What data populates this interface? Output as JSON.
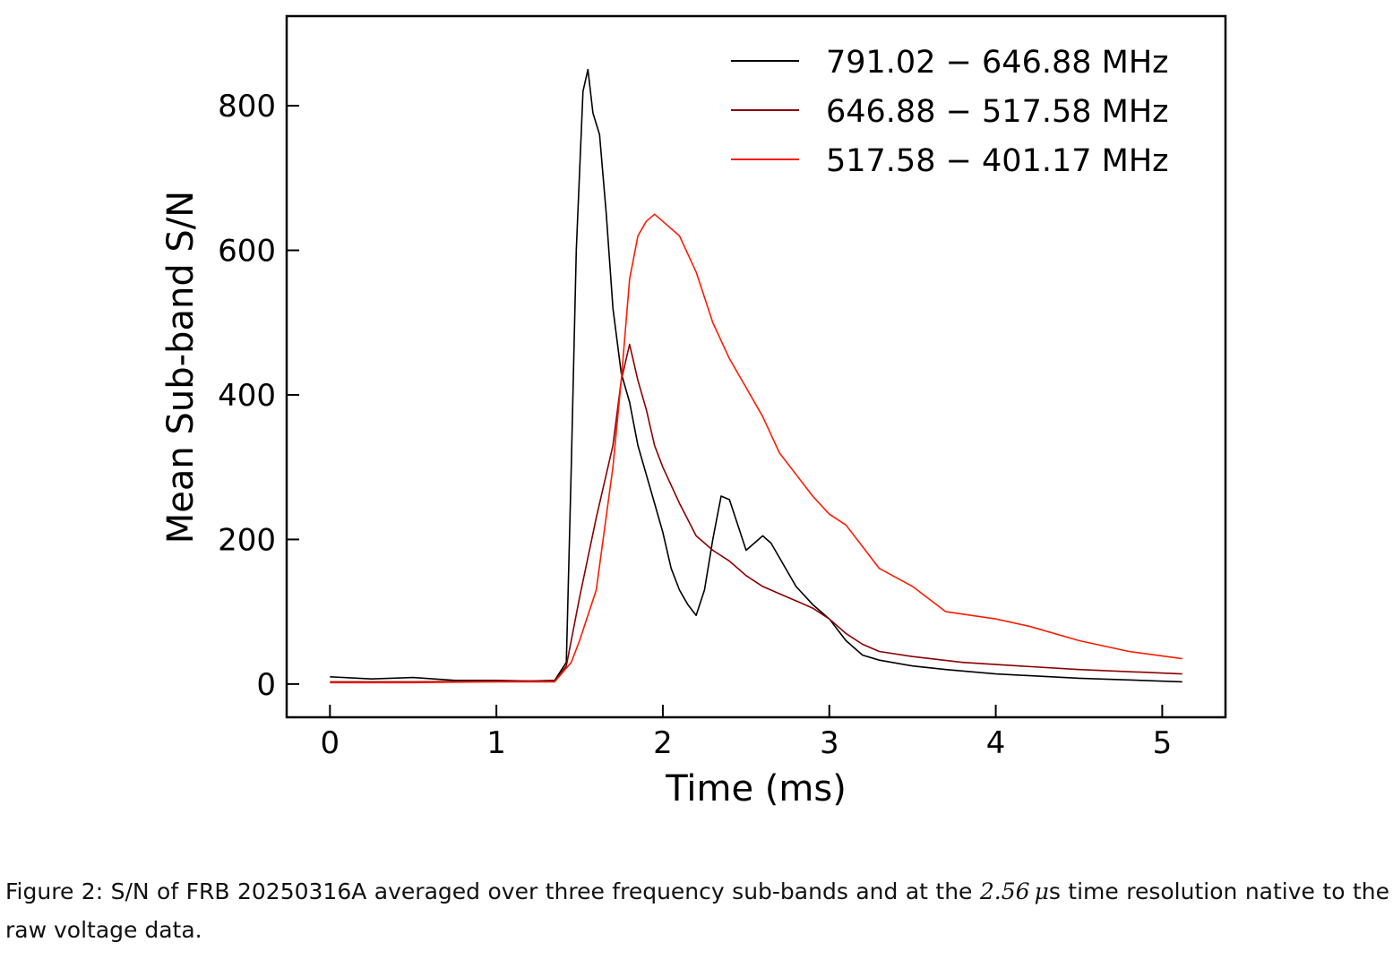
{
  "chart_data": {
    "type": "line",
    "title": "",
    "xlabel": "Time (ms)",
    "ylabel": "Mean Sub-band S/N",
    "xlim": [
      -0.26,
      5.38
    ],
    "ylim": [
      -46,
      924
    ],
    "xticks": [
      0,
      1,
      2,
      3,
      4,
      5
    ],
    "yticks": [
      0,
      200,
      400,
      600,
      800
    ],
    "grid": false,
    "legend_position": "top-right",
    "series": [
      {
        "name": "791.02 − 646.88 MHz",
        "color": "#000000",
        "x": [
          0,
          0.25,
          0.5,
          0.75,
          1.0,
          1.2,
          1.35,
          1.42,
          1.45,
          1.48,
          1.52,
          1.55,
          1.58,
          1.62,
          1.66,
          1.7,
          1.75,
          1.8,
          1.85,
          1.9,
          1.95,
          2.0,
          2.05,
          2.1,
          2.15,
          2.2,
          2.25,
          2.3,
          2.35,
          2.4,
          2.45,
          2.5,
          2.55,
          2.6,
          2.65,
          2.7,
          2.8,
          2.9,
          3.0,
          3.1,
          3.2,
          3.3,
          3.5,
          3.7,
          4.0,
          4.5,
          5.12
        ],
        "y": [
          10,
          7,
          9,
          5,
          5,
          4,
          5,
          30,
          300,
          600,
          820,
          850,
          790,
          760,
          650,
          520,
          430,
          390,
          330,
          290,
          250,
          210,
          160,
          130,
          110,
          95,
          130,
          200,
          260,
          255,
          220,
          185,
          195,
          205,
          195,
          175,
          135,
          110,
          90,
          60,
          40,
          33,
          25,
          20,
          14,
          8,
          3
        ]
      },
      {
        "name": "646.88 − 517.58 MHz",
        "color": "#8b0000",
        "x": [
          0,
          0.5,
          1.0,
          1.35,
          1.42,
          1.5,
          1.6,
          1.7,
          1.75,
          1.8,
          1.85,
          1.9,
          1.95,
          2.0,
          2.1,
          2.2,
          2.3,
          2.4,
          2.5,
          2.6,
          2.7,
          2.8,
          2.9,
          3.0,
          3.1,
          3.2,
          3.3,
          3.5,
          3.8,
          4.0,
          4.5,
          5.12
        ],
        "y": [
          3,
          3,
          4,
          4,
          25,
          120,
          230,
          330,
          420,
          470,
          420,
          380,
          330,
          300,
          250,
          205,
          185,
          170,
          150,
          135,
          125,
          115,
          105,
          90,
          70,
          55,
          45,
          38,
          30,
          27,
          20,
          14
        ]
      },
      {
        "name": "517.58 − 401.17 MHz",
        "color": "#ff1a00",
        "x": [
          0,
          0.5,
          1.0,
          1.35,
          1.45,
          1.5,
          1.6,
          1.7,
          1.75,
          1.8,
          1.85,
          1.9,
          1.95,
          2.0,
          2.1,
          2.2,
          2.3,
          2.4,
          2.5,
          2.6,
          2.7,
          2.8,
          2.9,
          3.0,
          3.1,
          3.2,
          3.3,
          3.5,
          3.7,
          4.0,
          4.2,
          4.5,
          4.8,
          5.12
        ],
        "y": [
          2,
          2,
          3,
          3,
          30,
          60,
          130,
          300,
          420,
          560,
          620,
          640,
          650,
          640,
          620,
          570,
          500,
          450,
          410,
          370,
          320,
          290,
          260,
          235,
          220,
          190,
          160,
          135,
          100,
          90,
          80,
          60,
          45,
          35
        ]
      }
    ]
  },
  "caption": {
    "prefix": "Figure 2: S/N of FRB 20250316A averaged over three frequency sub-bands and at the ",
    "math": "2.56 μ",
    "suffix": "s time resolution native to the raw voltage data."
  }
}
